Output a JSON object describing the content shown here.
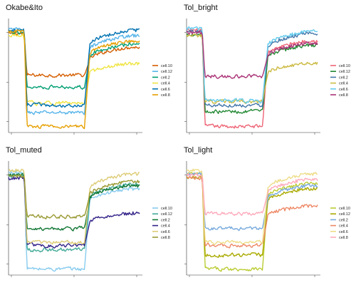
{
  "chart_data": [
    {
      "type": "line",
      "title": "Okabe&Ito",
      "xlabel": "",
      "ylabel": "",
      "grid": false,
      "legend_position": "right",
      "series": [
        {
          "name": "cell.10",
          "color": "#D55E00"
        },
        {
          "name": "cell.12",
          "color": "#56B4E9"
        },
        {
          "name": "cell.2",
          "color": "#009E73"
        },
        {
          "name": "cell.4",
          "color": "#F0E442"
        },
        {
          "name": "cell.6",
          "color": "#0072B2"
        },
        {
          "name": "cell.8",
          "color": "#E69F00"
        }
      ]
    },
    {
      "type": "line",
      "title": "Tol_bright",
      "xlabel": "",
      "ylabel": "",
      "grid": false,
      "legend_position": "right",
      "series": [
        {
          "name": "cell.10",
          "color": "#EE6677"
        },
        {
          "name": "cell.12",
          "color": "#228833"
        },
        {
          "name": "cell.2",
          "color": "#4477AA"
        },
        {
          "name": "cell.4",
          "color": "#CCBB44"
        },
        {
          "name": "cell.6",
          "color": "#66CCEE"
        },
        {
          "name": "cell.8",
          "color": "#AA3377"
        }
      ]
    },
    {
      "type": "line",
      "title": "Tol_muted",
      "xlabel": "",
      "ylabel": "",
      "grid": false,
      "legend_position": "right",
      "series": [
        {
          "name": "cell.10",
          "color": "#88CCEE"
        },
        {
          "name": "cell.12",
          "color": "#44AA99"
        },
        {
          "name": "cell.2",
          "color": "#117733"
        },
        {
          "name": "cell.4",
          "color": "#332288"
        },
        {
          "name": "cell.6",
          "color": "#DDCC77"
        },
        {
          "name": "cell.8",
          "color": "#999933"
        }
      ]
    },
    {
      "type": "line",
      "title": "Tol_light",
      "xlabel": "",
      "ylabel": "",
      "grid": false,
      "legend_position": "right",
      "series": [
        {
          "name": "cell.10",
          "color": "#BBCC33"
        },
        {
          "name": "cell.12",
          "color": "#AAAA00"
        },
        {
          "name": "cell.2",
          "color": "#77AADD"
        },
        {
          "name": "cell.4",
          "color": "#EE8866"
        },
        {
          "name": "cell.6",
          "color": "#EEDD88"
        },
        {
          "name": "cell.8",
          "color": "#FFAABB"
        }
      ]
    }
  ]
}
